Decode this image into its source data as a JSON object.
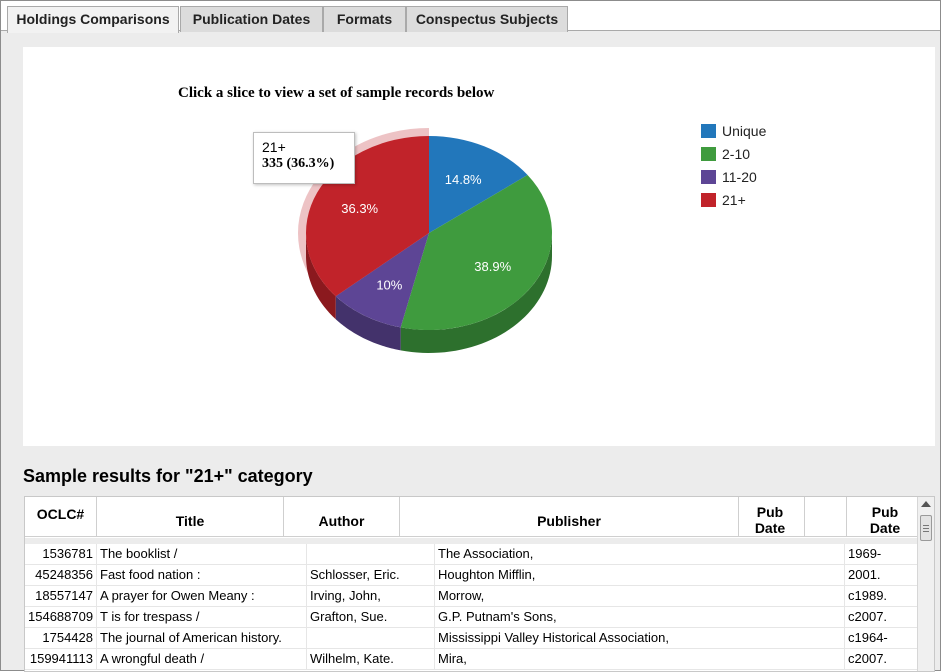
{
  "tabs": [
    {
      "label": "Holdings Comparisons",
      "active": true
    },
    {
      "label": "Publication Dates",
      "active": false
    },
    {
      "label": "Formats",
      "active": false
    },
    {
      "label": "Conspectus Subjects",
      "active": false
    }
  ],
  "chart_data": {
    "type": "pie",
    "title": "Click a slice to view a set of sample records below",
    "categories": [
      "Unique",
      "2-10",
      "11-20",
      "21+"
    ],
    "values": [
      14.8,
      38.9,
      10.0,
      36.3
    ],
    "data_labels": [
      "14.8%",
      "38.9%",
      "10%",
      "36.3%"
    ],
    "colors": [
      "#2277bb",
      "#3f9b3e",
      "#5d4595",
      "#c1232a"
    ],
    "legend_position": "right",
    "selected": "21+",
    "tooltip": {
      "label": "21+",
      "value": "335 (36.3%)"
    }
  },
  "results": {
    "heading": "Sample results for \"21+\" category",
    "columns": [
      "OCLC#",
      "Title",
      "Author",
      "Publisher",
      "Pub Date",
      "Pub Date"
    ],
    "rows": [
      {
        "oclc": "1536781",
        "title": "The booklist /",
        "author": "",
        "publisher": "The Association,",
        "date": "1969-"
      },
      {
        "oclc": "45248356",
        "title": "Fast food nation :",
        "author": "Schlosser, Eric.",
        "publisher": "Houghton Mifflin,",
        "date": "2001."
      },
      {
        "oclc": "18557147",
        "title": "A prayer for Owen Meany :",
        "author": "Irving, John,",
        "publisher": "Morrow,",
        "date": "c1989."
      },
      {
        "oclc": "154688709",
        "title": "T is for trespass /",
        "author": "Grafton, Sue.",
        "publisher": "G.P. Putnam's Sons,",
        "date": "c2007."
      },
      {
        "oclc": "1754428",
        "title": "The journal of American history.",
        "author": "",
        "publisher": "Mississippi Valley Historical Association,",
        "date": "c1964-"
      },
      {
        "oclc": "159941113",
        "title": "A wrongful death /",
        "author": "Wilhelm, Kate.",
        "publisher": "Mira,",
        "date": "c2007."
      }
    ]
  }
}
